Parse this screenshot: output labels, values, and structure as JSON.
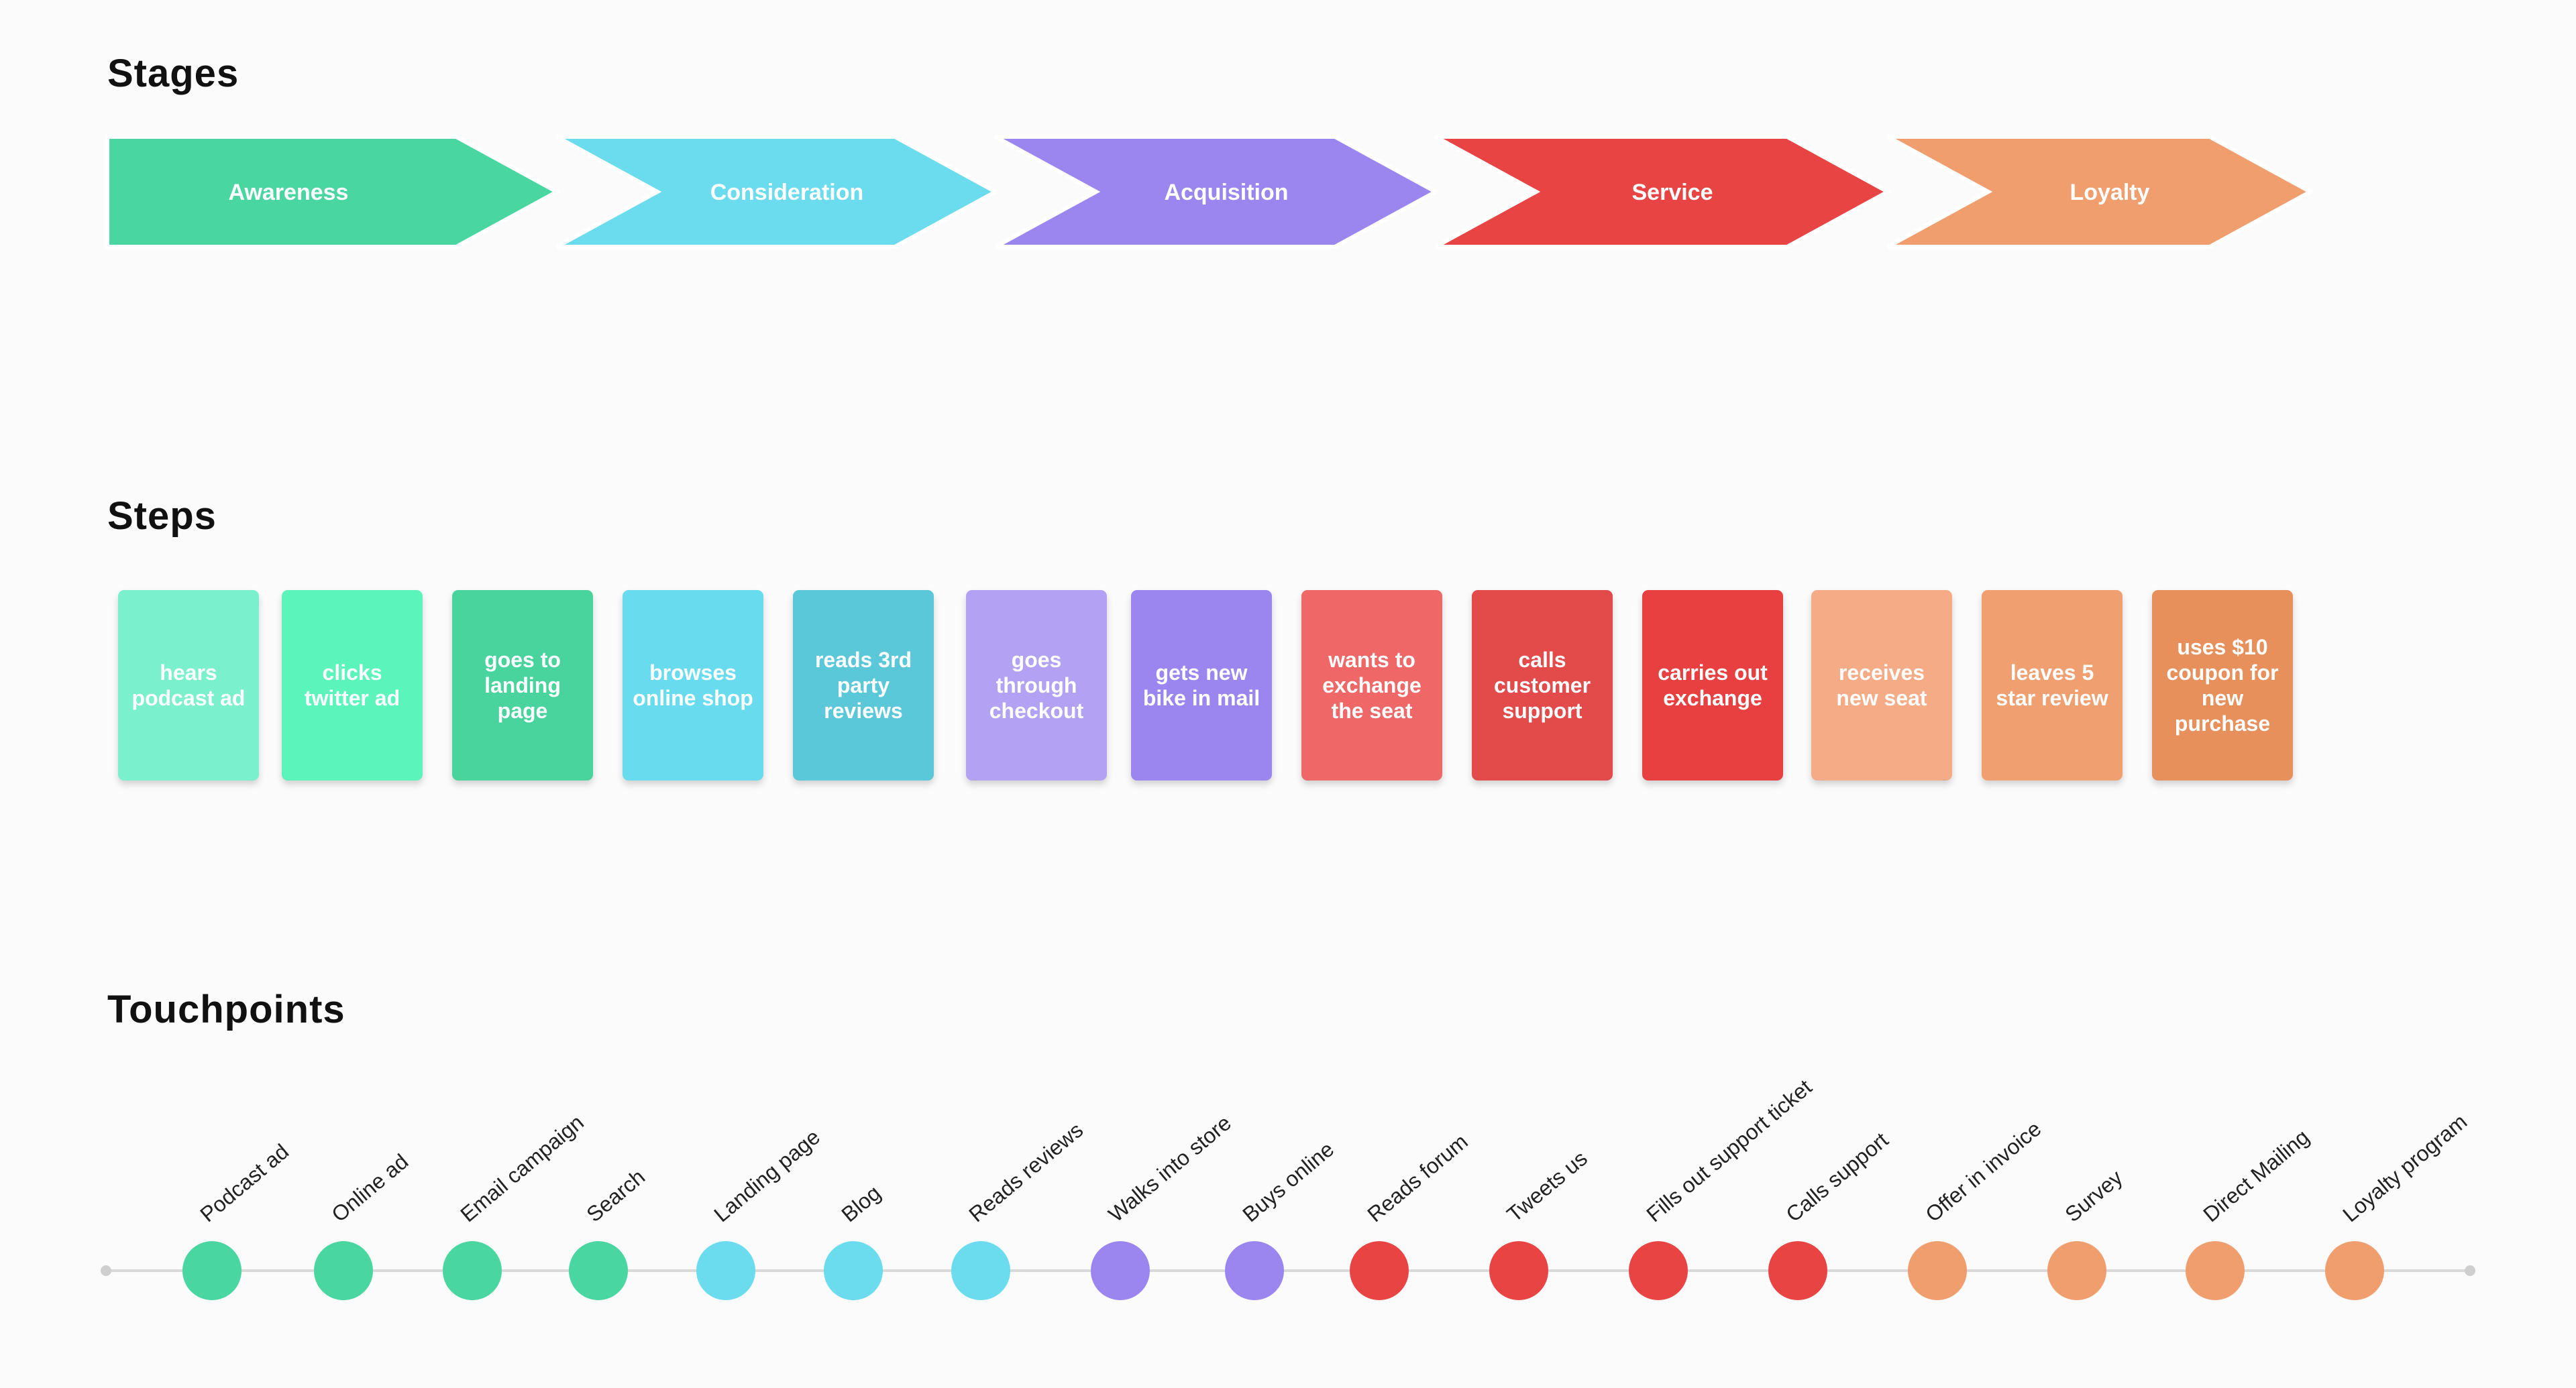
{
  "sections": {
    "stages_title": "Stages",
    "steps_title": "Steps",
    "touchpoints_title": "Touchpoints"
  },
  "stages": [
    {
      "label": "Awareness",
      "color": "#4ad6a0"
    },
    {
      "label": "Consideration",
      "color": "#6adcee"
    },
    {
      "label": "Acquisition",
      "color": "#9b86f0"
    },
    {
      "label": "Service",
      "color": "#e84444"
    },
    {
      "label": "Loyalty",
      "color": "#f09e6e"
    }
  ],
  "steps": [
    {
      "label": "hears podcast ad",
      "color": "#7bf0cc"
    },
    {
      "label": "clicks twitter ad",
      "color": "#5bf5bb"
    },
    {
      "label": "goes to landing page",
      "color": "#48d49c"
    },
    {
      "label": "browses online shop",
      "color": "#68dcee"
    },
    {
      "label": "reads 3rd party reviews",
      "color": "#5bc8da"
    },
    {
      "label": "goes through checkout",
      "color": "#b3a2f3"
    },
    {
      "label": "gets new bike in mail",
      "color": "#9b86f0"
    },
    {
      "label": "wants to exchange the seat",
      "color": "#f06767"
    },
    {
      "label": "calls customer support",
      "color": "#e34a4a"
    },
    {
      "label": "carries out exchange",
      "color": "#e84040"
    },
    {
      "label": "receives new seat",
      "color": "#f5ab85"
    },
    {
      "label": "leaves 5 star review",
      "color": "#f0a070"
    },
    {
      "label": "uses $10 coupon for new purchase",
      "color": "#e8905c"
    }
  ],
  "touchpoints": [
    {
      "label": "Podcast ad",
      "color": "#4ad6a0"
    },
    {
      "label": "Online ad",
      "color": "#4ad6a0"
    },
    {
      "label": "Email campaign",
      "color": "#4ad6a0"
    },
    {
      "label": "Search",
      "color": "#4ad6a0"
    },
    {
      "label": "Landing page",
      "color": "#6adcee"
    },
    {
      "label": "Blog",
      "color": "#6adcee"
    },
    {
      "label": "Reads reviews",
      "color": "#6adcee"
    },
    {
      "label": "Walks into store",
      "color": "#9b86f0"
    },
    {
      "label": "Buys online",
      "color": "#9b86f0"
    },
    {
      "label": "Reads forum",
      "color": "#e84444"
    },
    {
      "label": "Tweets us",
      "color": "#e84444"
    },
    {
      "label": "Fills out support ticket",
      "color": "#e84444"
    },
    {
      "label": "Calls support",
      "color": "#e84444"
    },
    {
      "label": "Offer in invoice",
      "color": "#f09e6e"
    },
    {
      "label": "Survey",
      "color": "#f09e6e"
    },
    {
      "label": "Direct Mailing",
      "color": "#f09e6e"
    },
    {
      "label": "Loyalty program",
      "color": "#f09e6e"
    }
  ],
  "timeline_color": "#d9d9d9"
}
